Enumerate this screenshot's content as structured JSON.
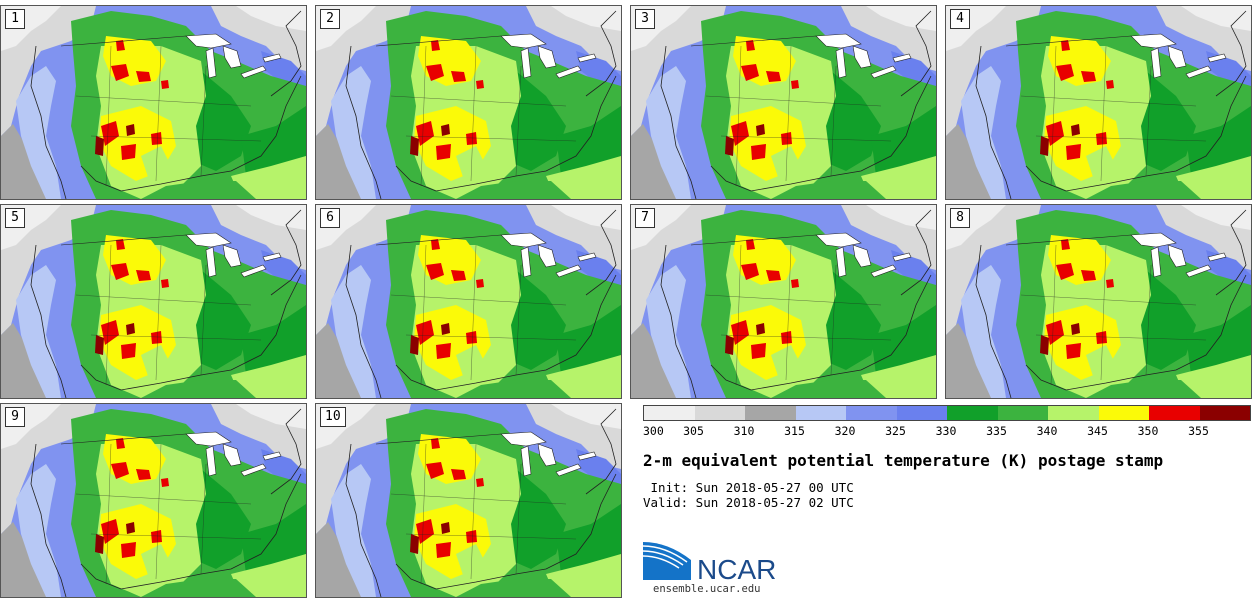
{
  "panels": [
    {
      "label": "1"
    },
    {
      "label": "2"
    },
    {
      "label": "3"
    },
    {
      "label": "4"
    },
    {
      "label": "5"
    },
    {
      "label": "6"
    },
    {
      "label": "7"
    },
    {
      "label": "8"
    },
    {
      "label": "9"
    },
    {
      "label": "10"
    }
  ],
  "colorbar": {
    "colors": [
      "#efefef",
      "#d9d9d9",
      "#a6a6a6",
      "#b7c8f5",
      "#8093f0",
      "#6a80ee",
      "#11a02a",
      "#3cb33f",
      "#b6f36a",
      "#fbfa08",
      "#e80000",
      "#8b0000"
    ],
    "ticks": [
      "300",
      "305",
      "310",
      "315",
      "320",
      "325",
      "330",
      "335",
      "340",
      "345",
      "350",
      "355"
    ]
  },
  "title": "2-m equivalent potential temperature (K) postage stamp",
  "init": " Init: Sun 2018-05-27 00 UTC",
  "valid": "Valid: Sun 2018-05-27 02 UTC",
  "logo": {
    "text": "NCAR",
    "url": "ensemble.ucar.edu",
    "color": "#1b4a8a"
  }
}
